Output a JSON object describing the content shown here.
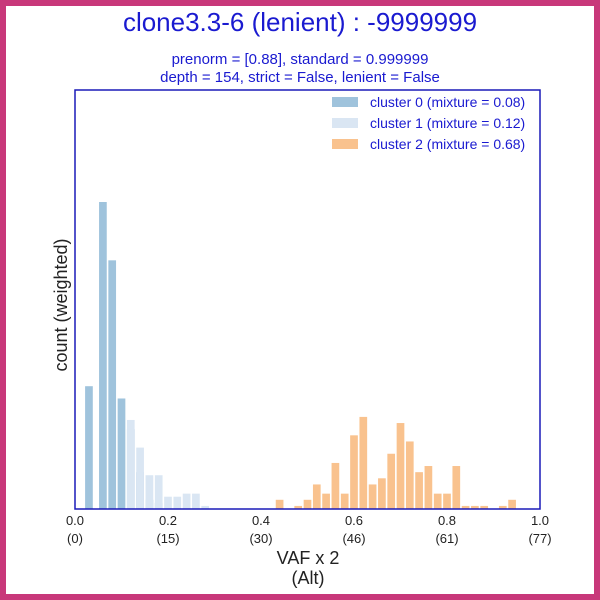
{
  "chart_data": {
    "type": "bar",
    "title": "clone3.3-6 (lenient) : -9999999",
    "subtitle_lines": [
      "prenorm = [0.88], standard = 0.999999",
      "depth = 154, strict = False, lenient = False"
    ],
    "xlabel_lines": [
      "VAF x 2",
      "(Alt)"
    ],
    "ylabel": "count (weighted)",
    "xlim": [
      0.0,
      1.0
    ],
    "ylim": [
      0,
      1.0
    ],
    "x_ticks": [
      {
        "value": 0.0,
        "label": "0.0",
        "sublabel": "(0)"
      },
      {
        "value": 0.2,
        "label": "0.2",
        "sublabel": "(15)"
      },
      {
        "value": 0.4,
        "label": "0.4",
        "sublabel": "(30)"
      },
      {
        "value": 0.6,
        "label": "0.6",
        "sublabel": "(46)"
      },
      {
        "value": 0.8,
        "label": "0.8",
        "sublabel": "(61)"
      },
      {
        "value": 1.0,
        "label": "1.0",
        "sublabel": "(77)"
      }
    ],
    "y_ticks_visible": false,
    "grid": false,
    "legend_position": "top-right",
    "bin_width": 0.02,
    "series": [
      {
        "name": "cluster 0  (mixture = 0.08)",
        "color": "#9fc3dc",
        "x": [
          0.03,
          0.06,
          0.08,
          0.1,
          0.12,
          0.14,
          0.16,
          0.18
        ],
        "values": [
          0.4,
          1.0,
          0.81,
          0.36,
          0.26,
          0.12,
          0.03,
          0.02
        ]
      },
      {
        "name": "cluster 1  (mixture = 0.12)",
        "color": "#dae6f3",
        "x": [
          0.12,
          0.14,
          0.16,
          0.18,
          0.2,
          0.22,
          0.24,
          0.26,
          0.28
        ],
        "values": [
          0.29,
          0.2,
          0.11,
          0.11,
          0.04,
          0.04,
          0.05,
          0.05,
          0.01
        ]
      },
      {
        "name": "cluster 2  (mixture = 0.68)",
        "color": "#f9c28e",
        "x": [
          0.44,
          0.48,
          0.5,
          0.52,
          0.54,
          0.56,
          0.58,
          0.6,
          0.62,
          0.64,
          0.66,
          0.68,
          0.7,
          0.72,
          0.74,
          0.76,
          0.78,
          0.8,
          0.82,
          0.84,
          0.86,
          0.88,
          0.92,
          0.94
        ],
        "values": [
          0.03,
          0.01,
          0.03,
          0.08,
          0.05,
          0.15,
          0.05,
          0.24,
          0.3,
          0.08,
          0.1,
          0.18,
          0.28,
          0.22,
          0.12,
          0.14,
          0.05,
          0.05,
          0.14,
          0.01,
          0.01,
          0.01,
          0.01,
          0.03
        ]
      }
    ],
    "frame_color": "#1a1ab8"
  }
}
